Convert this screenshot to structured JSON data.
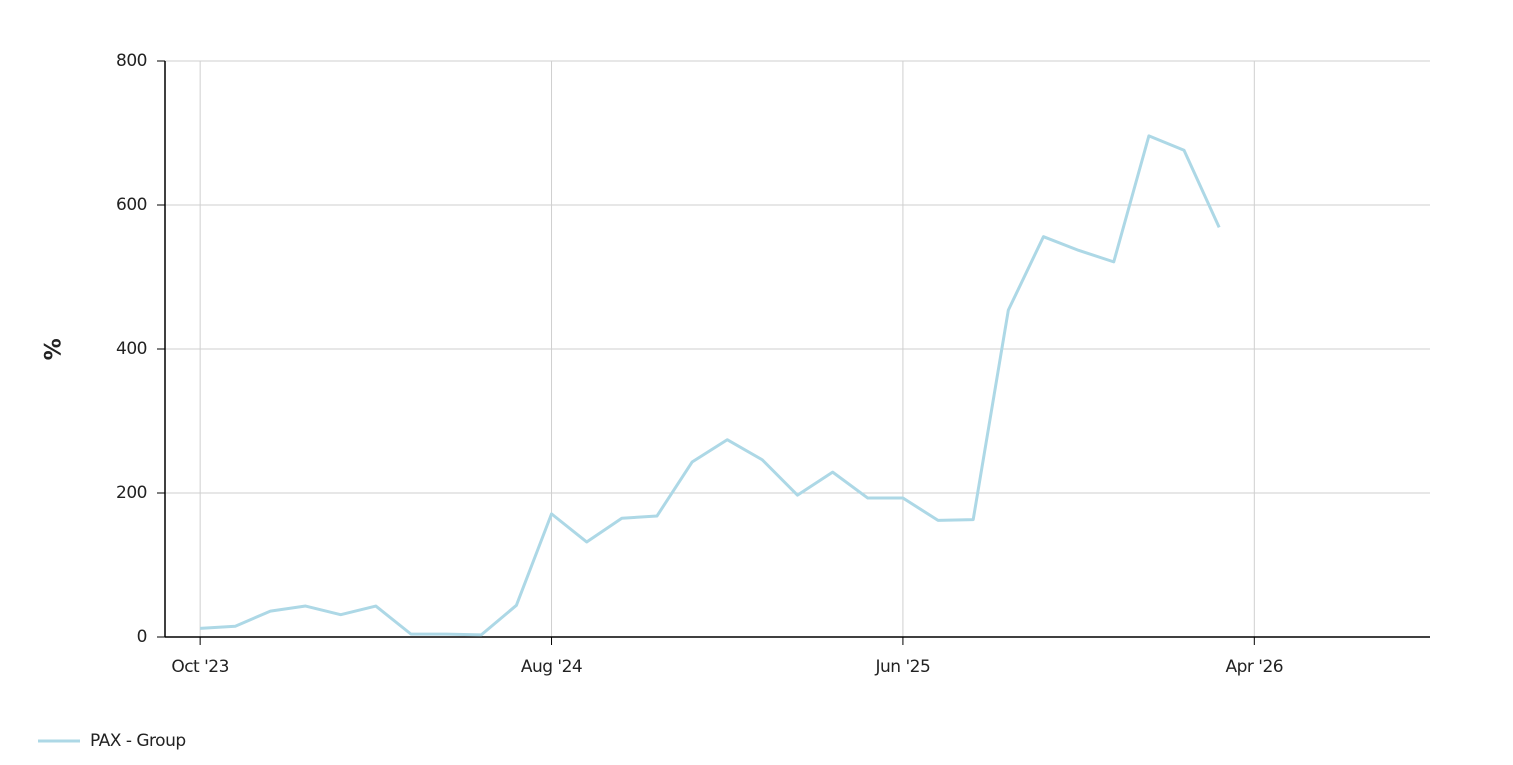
{
  "chart_data": {
    "type": "line",
    "y_label": "%",
    "x": [
      "2023-10",
      "2023-11",
      "2023-12",
      "2024-01",
      "2024-02",
      "2024-03",
      "2024-04",
      "2024-05",
      "2024-06",
      "2024-07",
      "2024-08",
      "2024-09",
      "2024-10",
      "2024-11",
      "2024-12",
      "2025-01",
      "2025-02",
      "2025-03",
      "2025-04",
      "2025-05",
      "2025-06",
      "2025-07",
      "2025-08",
      "2025-09",
      "2025-10",
      "2025-11",
      "2025-12",
      "2026-01",
      "2026-02",
      "2026-03"
    ],
    "series": [
      {
        "name": "PAX - Group",
        "color": "#add8e6",
        "values": [
          12,
          15,
          36,
          43,
          31,
          43,
          4,
          4,
          3,
          44,
          171,
          132,
          165,
          168,
          243,
          274,
          246,
          197,
          229,
          193,
          193,
          162,
          163,
          454,
          556,
          537,
          521,
          696,
          676,
          569
        ]
      }
    ],
    "xlim": [
      "2023-09",
      "2026-09"
    ],
    "xticks": [
      {
        "value": "2023-10",
        "label": "Oct '23"
      },
      {
        "value": "2024-08",
        "label": "Aug '24"
      },
      {
        "value": "2025-06",
        "label": "Jun '25"
      },
      {
        "value": "2026-04",
        "label": "Apr '26"
      }
    ],
    "ylim": [
      0,
      800
    ],
    "yticks": [
      0,
      200,
      400,
      600,
      800
    ],
    "grid": true,
    "legend": "bottom-left"
  }
}
